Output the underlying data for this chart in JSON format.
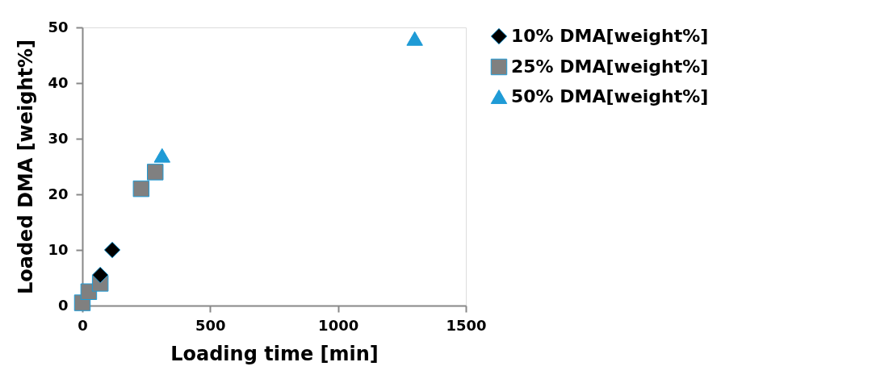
{
  "chart_data": {
    "type": "scatter",
    "xlabel": "Loading time [min]",
    "ylabel": "Loaded DMA [weight%]",
    "xlim": [
      0,
      1500
    ],
    "xticks": [
      0,
      500,
      1000,
      1500
    ],
    "ylim": [
      0,
      50
    ],
    "yticks": [
      0,
      10,
      20,
      30,
      40,
      50
    ],
    "grid": false,
    "legend": "right",
    "series": [
      {
        "name": "10% DMA[weight%]",
        "color": "#000000",
        "marker": "diamond",
        "x": [
          70,
          117
        ],
        "values": [
          5.5,
          10
        ]
      },
      {
        "name": "25% DMA[weight%]",
        "color": "#808080",
        "marker": "square",
        "x": [
          0,
          25,
          70,
          230,
          285
        ],
        "values": [
          0.5,
          2.5,
          4,
          21,
          24
        ]
      },
      {
        "name": "50% DMA[weight%]",
        "color": "#1f9bd6",
        "marker": "triangle",
        "x": [
          312,
          1300
        ],
        "values": [
          27,
          48
        ]
      }
    ]
  }
}
